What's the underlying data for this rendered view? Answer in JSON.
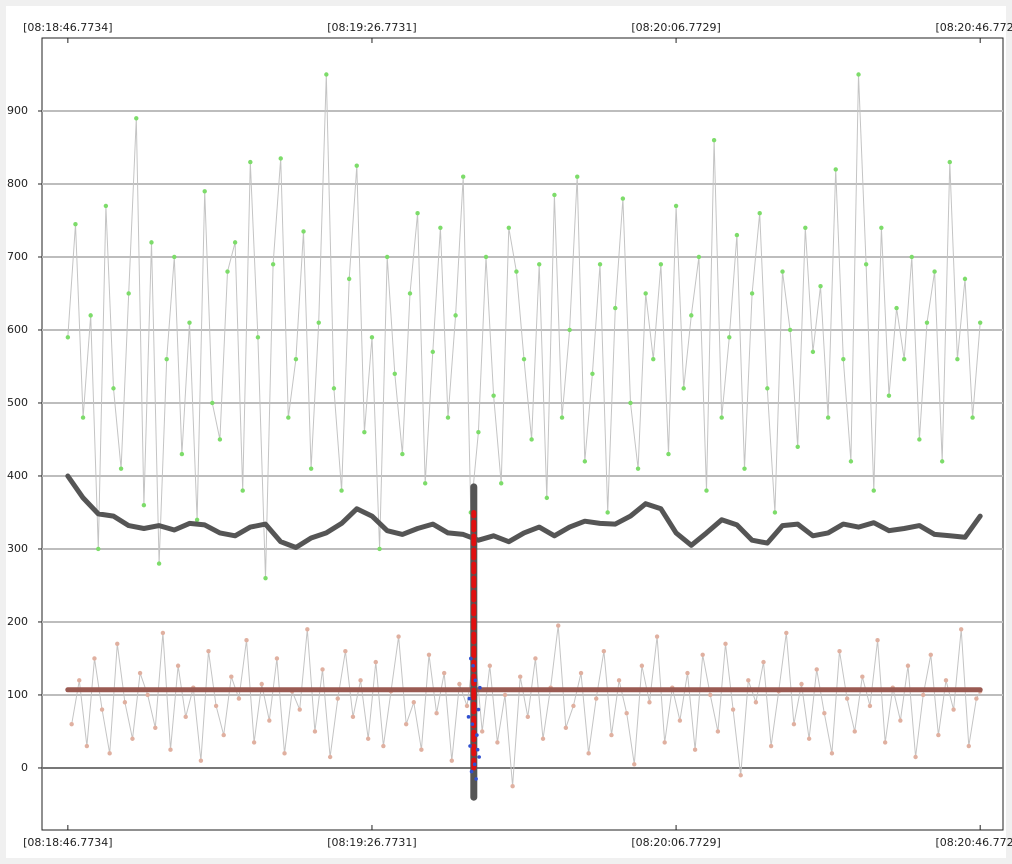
{
  "chart_data": {
    "type": "line",
    "xlim": [
      -3.4,
      123
    ],
    "ylim": [
      -85,
      1000
    ],
    "xticks": [
      {
        "value": 0,
        "label": "[08:18:46.7734]"
      },
      {
        "value": 40,
        "label": "[08:19:26.7731]"
      },
      {
        "value": 80,
        "label": "[08:20:06.7729]"
      },
      {
        "value": 120,
        "label": "[08:20:46.7726]"
      }
    ],
    "yticks": [
      0,
      100,
      200,
      300,
      400,
      500,
      600,
      700,
      800,
      900
    ],
    "grid": true,
    "series": [
      {
        "color": "#7ddc6a",
        "line_color": "#c4c4c4",
        "style": "line-markers",
        "x": [
          0,
          1,
          2,
          3,
          4,
          5,
          6,
          7,
          8,
          9,
          10,
          11,
          12,
          13,
          14,
          15,
          16,
          17,
          18,
          19,
          20,
          21,
          22,
          23,
          24,
          25,
          26,
          27,
          28,
          29,
          30,
          31,
          32,
          33,
          34,
          35,
          36,
          37,
          38,
          39,
          40,
          41,
          42,
          43,
          44,
          45,
          46,
          47,
          48,
          49,
          50,
          51,
          52,
          53,
          54,
          55,
          56,
          57,
          58,
          59,
          60,
          61,
          62,
          63,
          64,
          65,
          66,
          67,
          68,
          69,
          70,
          71,
          72,
          73,
          74,
          75,
          76,
          77,
          78,
          79,
          80,
          81,
          82,
          83,
          84,
          85,
          86,
          87,
          88,
          89,
          90,
          91,
          92,
          93,
          94,
          95,
          96,
          97,
          98,
          99,
          100,
          101,
          102,
          103,
          104,
          105,
          106,
          107,
          108,
          109,
          110,
          111,
          112,
          113,
          114,
          115,
          116,
          117,
          118,
          119,
          120
        ],
        "values": [
          590,
          745,
          480,
          620,
          300,
          770,
          520,
          410,
          650,
          890,
          360,
          720,
          280,
          560,
          700,
          430,
          610,
          340,
          790,
          500,
          450,
          680,
          720,
          380,
          830,
          590,
          260,
          690,
          835,
          480,
          560,
          735,
          410,
          610,
          950,
          520,
          380,
          670,
          825,
          460,
          590,
          300,
          700,
          540,
          430,
          650,
          760,
          390,
          570,
          740,
          480,
          620,
          810,
          350,
          460,
          700,
          510,
          390,
          740,
          680,
          560,
          450,
          690,
          370,
          785,
          480,
          600,
          810,
          420,
          540,
          690,
          350,
          630,
          780,
          500,
          410,
          650,
          560,
          690,
          430,
          770,
          520,
          620,
          700,
          380,
          860,
          480,
          590,
          730,
          410,
          650,
          760,
          520,
          350,
          680,
          600,
          440,
          740,
          570,
          660,
          480,
          820,
          560,
          420,
          950,
          690,
          380,
          740,
          510,
          630,
          560,
          700,
          450,
          610,
          680,
          420,
          830,
          560,
          670,
          480,
          610
        ]
      },
      {
        "color": "#e0b0a0",
        "line_color": "#c4c4c4",
        "style": "line-markers",
        "x": [
          0.5,
          1.5,
          2.5,
          3.5,
          4.5,
          5.5,
          6.5,
          7.5,
          8.5,
          9.5,
          10.5,
          11.5,
          12.5,
          13.5,
          14.5,
          15.5,
          16.5,
          17.5,
          18.5,
          19.5,
          20.5,
          21.5,
          22.5,
          23.5,
          24.5,
          25.5,
          26.5,
          27.5,
          28.5,
          29.5,
          30.5,
          31.5,
          32.5,
          33.5,
          34.5,
          35.5,
          36.5,
          37.5,
          38.5,
          39.5,
          40.5,
          41.5,
          42.5,
          43.5,
          44.5,
          45.5,
          46.5,
          47.5,
          48.5,
          49.5,
          50.5,
          51.5,
          52.5,
          53.5,
          54.5,
          55.5,
          56.5,
          57.5,
          58.5,
          59.5,
          60.5,
          61.5,
          62.5,
          63.5,
          64.5,
          65.5,
          66.5,
          67.5,
          68.5,
          69.5,
          70.5,
          71.5,
          72.5,
          73.5,
          74.5,
          75.5,
          76.5,
          77.5,
          78.5,
          79.5,
          80.5,
          81.5,
          82.5,
          83.5,
          84.5,
          85.5,
          86.5,
          87.5,
          88.5,
          89.5,
          90.5,
          91.5,
          92.5,
          93.5,
          94.5,
          95.5,
          96.5,
          97.5,
          98.5,
          99.5,
          100.5,
          101.5,
          102.5,
          103.5,
          104.5,
          105.5,
          106.5,
          107.5,
          108.5,
          109.5,
          110.5,
          111.5,
          112.5,
          113.5,
          114.5,
          115.5,
          116.5,
          117.5,
          118.5,
          119.5,
          120
        ],
        "values": [
          60,
          120,
          30,
          150,
          80,
          20,
          170,
          90,
          40,
          130,
          100,
          55,
          185,
          25,
          140,
          70,
          110,
          10,
          160,
          85,
          45,
          125,
          95,
          175,
          35,
          115,
          65,
          150,
          20,
          105,
          80,
          190,
          50,
          135,
          15,
          95,
          160,
          70,
          120,
          40,
          145,
          30,
          105,
          180,
          60,
          90,
          25,
          155,
          75,
          130,
          10,
          115,
          85,
          165,
          50,
          140,
          35,
          100,
          -25,
          125,
          70,
          150,
          40,
          110,
          195,
          55,
          85,
          130,
          20,
          95,
          160,
          45,
          120,
          75,
          5,
          140,
          90,
          180,
          35,
          110,
          65,
          130,
          25,
          155,
          100,
          50,
          170,
          80,
          -10,
          120,
          90,
          145,
          30,
          105,
          185,
          60,
          115,
          40,
          135,
          75,
          20,
          160,
          95,
          50,
          125,
          85,
          175,
          35,
          110,
          65,
          140,
          15,
          100,
          155,
          45,
          120,
          80,
          190,
          30,
          95,
          105
        ]
      },
      {
        "color": "#555555",
        "style": "line",
        "width": 5,
        "x": [
          0,
          2,
          4,
          6,
          8,
          10,
          12,
          14,
          16,
          18,
          20,
          22,
          24,
          26,
          28,
          30,
          32,
          34,
          36,
          38,
          40,
          42,
          44,
          46,
          48,
          50,
          52,
          54,
          56,
          58,
          60,
          62,
          64,
          66,
          68,
          70,
          72,
          74,
          76,
          78,
          80,
          82,
          84,
          86,
          88,
          90,
          92,
          94,
          96,
          98,
          100,
          102,
          104,
          106,
          108,
          110,
          112,
          114,
          116,
          118,
          120
        ],
        "values": [
          400,
          370,
          348,
          345,
          332,
          328,
          332,
          326,
          335,
          333,
          322,
          318,
          330,
          334,
          310,
          302,
          315,
          322,
          335,
          355,
          345,
          325,
          320,
          328,
          334,
          322,
          320,
          312,
          318,
          310,
          322,
          330,
          318,
          330,
          338,
          335,
          334,
          345,
          362,
          355,
          322,
          305,
          322,
          340,
          333,
          312,
          308,
          332,
          334,
          318,
          322,
          334,
          330,
          336,
          325,
          328,
          332,
          320,
          318,
          316,
          345
        ]
      },
      {
        "color": "#9a5a52",
        "style": "line",
        "width": 5,
        "x": [
          0,
          120
        ],
        "values": [
          107,
          107
        ]
      },
      {
        "color": "#555555",
        "style": "line",
        "width": 7,
        "x": [
          53.4,
          53.4
        ],
        "values": [
          -40,
          385
        ]
      },
      {
        "color": "#e01010",
        "style": "dashed",
        "width": 5,
        "x": [
          53.4,
          53.4
        ],
        "values": [
          0,
          350
        ]
      },
      {
        "color": "#3050d0",
        "style": "markers",
        "x": [
          53.0,
          53.6,
          52.8,
          54.0,
          53.2,
          53.8,
          52.9,
          54.1,
          53.5,
          53.1,
          53.7,
          53.3,
          54.2,
          52.7,
          53.9
        ],
        "values": [
          150,
          120,
          95,
          80,
          60,
          45,
          30,
          15,
          5,
          -5,
          -15,
          140,
          110,
          70,
          25
        ]
      }
    ]
  }
}
